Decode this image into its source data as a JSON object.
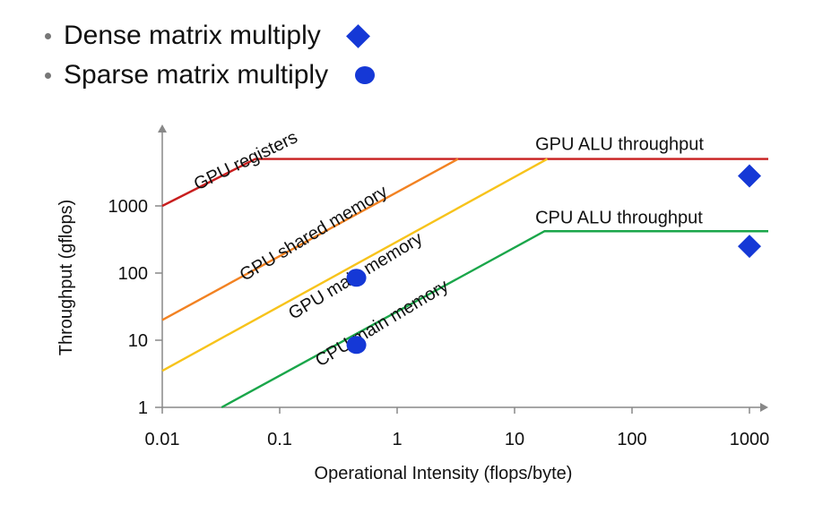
{
  "legend": {
    "items": [
      {
        "label": "Dense matrix multiply",
        "marker": "diamond"
      },
      {
        "label": "Sparse matrix multiply",
        "marker": "circle"
      }
    ]
  },
  "chart_data": {
    "type": "line",
    "title": "",
    "xlabel": "Operational Intensity (flops/byte)",
    "ylabel": "Throughput (gflops)",
    "xscale": "log",
    "yscale": "log",
    "xlim": [
      0.01,
      2000
    ],
    "ylim": [
      1,
      10000
    ],
    "xticks": [
      0.01,
      0.1,
      1,
      10,
      100,
      1000
    ],
    "xtick_labels": [
      "0.01",
      "0.1",
      "1",
      "10",
      "100",
      "1000"
    ],
    "yticks": [
      1,
      10,
      100,
      1000
    ],
    "ytick_labels": [
      "1",
      "10",
      "100",
      "1000"
    ],
    "colors": {
      "red": "#c81e1e",
      "orange": "#f28222",
      "yellow": "#f7c31b",
      "green": "#1aa64a",
      "marker": "#1538d6",
      "axis": "#888888"
    },
    "series": [
      {
        "name": "GPU registers",
        "color": "#c81e1e",
        "x": [
          0.01,
          0.062,
          2000
        ],
        "y": [
          1000,
          5000,
          5000
        ]
      },
      {
        "name": "GPU shared memory",
        "color": "#f28222",
        "x": [
          0.01,
          3.3
        ],
        "y": [
          20,
          5000
        ]
      },
      {
        "name": "GPU main memory",
        "color": "#f7c31b",
        "x": [
          0.01,
          19
        ],
        "y": [
          3.5,
          5000
        ]
      },
      {
        "name": "CPU main memory",
        "color": "#1aa64a",
        "x": [
          0.032,
          18,
          2000
        ],
        "y": [
          1,
          420,
          420
        ]
      }
    ],
    "points": [
      {
        "name": "Dense matrix multiply",
        "marker": "diamond",
        "x": 1000,
        "y": 2800
      },
      {
        "name": "Dense matrix multiply",
        "marker": "diamond",
        "x": 1000,
        "y": 250
      },
      {
        "name": "Sparse matrix multiply",
        "marker": "circle",
        "x": 0.45,
        "y": 85
      },
      {
        "name": "Sparse matrix multiply",
        "marker": "circle",
        "x": 0.45,
        "y": 8.5
      }
    ],
    "annotations": [
      {
        "text": "GPU registers",
        "x": 0.02,
        "y": 1700,
        "angle": -26
      },
      {
        "text": "GPU shared memory",
        "x": 0.05,
        "y": 75,
        "angle": -31
      },
      {
        "text": "GPU main memory",
        "x": 0.13,
        "y": 20,
        "angle": -31
      },
      {
        "text": "CPU main memory",
        "x": 0.22,
        "y": 4.0,
        "angle": -31
      },
      {
        "text": "GPU ALU throughput",
        "x": 15,
        "y": 6800,
        "angle": 0
      },
      {
        "text": "CPU ALU throughput",
        "x": 15,
        "y": 550,
        "angle": 0
      }
    ]
  }
}
